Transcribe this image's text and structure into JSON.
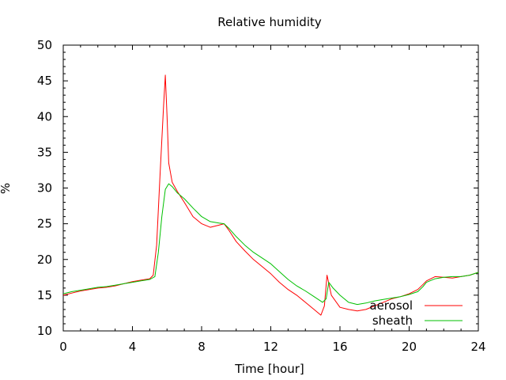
{
  "chart_data": {
    "type": "line",
    "title": "Relative humidity",
    "xlabel": "Time [hour]",
    "ylabel": "%",
    "xlim": [
      0,
      24
    ],
    "ylim": [
      10,
      50
    ],
    "x_ticks": [
      0,
      4,
      8,
      12,
      16,
      20,
      24
    ],
    "y_ticks": [
      10,
      15,
      20,
      25,
      30,
      35,
      40,
      45,
      50
    ],
    "grid": false,
    "legend_position": "bottom-right",
    "series": [
      {
        "name": "aerosol",
        "color": "#ff0000",
        "x": [
          0,
          0.5,
          1,
          1.5,
          2,
          2.5,
          3,
          3.5,
          4,
          4.5,
          5,
          5.2,
          5.4,
          5.6,
          5.8,
          5.9,
          6.0,
          6.1,
          6.3,
          6.6,
          7.0,
          7.5,
          8.0,
          8.5,
          9.0,
          9.3,
          9.6,
          10.0,
          10.5,
          11.0,
          11.5,
          12.0,
          12.5,
          13.0,
          13.5,
          14.0,
          14.5,
          14.9,
          15.1,
          15.25,
          15.5,
          16.0,
          16.5,
          17.0,
          17.5,
          18.0,
          18.5,
          19.0,
          19.5,
          20.0,
          20.5,
          20.8,
          21.0,
          21.5,
          22.0,
          22.5,
          23.0,
          23.5,
          24.0
        ],
        "y": [
          15.0,
          15.3,
          15.6,
          15.8,
          16.0,
          16.1,
          16.3,
          16.6,
          16.9,
          17.1,
          17.3,
          17.8,
          22.0,
          32.0,
          41.5,
          45.8,
          40.0,
          33.5,
          30.8,
          29.5,
          28.0,
          26.0,
          25.0,
          24.5,
          24.8,
          25.0,
          24.0,
          22.5,
          21.2,
          20.0,
          19.0,
          18.0,
          16.8,
          15.8,
          15.0,
          14.0,
          13.0,
          12.2,
          13.5,
          17.8,
          15.0,
          13.3,
          13.0,
          12.8,
          13.0,
          13.5,
          14.0,
          14.5,
          14.8,
          15.2,
          15.8,
          16.5,
          17.0,
          17.6,
          17.5,
          17.4,
          17.6,
          17.8,
          18.2
        ]
      },
      {
        "name": "sheath",
        "color": "#00c000",
        "x": [
          0,
          0.5,
          1,
          1.5,
          2,
          2.5,
          3,
          3.5,
          4,
          4.5,
          5,
          5.3,
          5.5,
          5.7,
          5.9,
          6.1,
          6.3,
          6.6,
          7.0,
          7.5,
          8.0,
          8.5,
          9.0,
          9.3,
          9.6,
          10.0,
          10.5,
          11.0,
          11.5,
          12.0,
          12.5,
          13.0,
          13.5,
          14.0,
          14.5,
          15.0,
          15.2,
          15.35,
          15.6,
          16.0,
          16.5,
          17.0,
          17.5,
          18.0,
          18.5,
          19.0,
          19.5,
          20.0,
          20.5,
          20.8,
          21.0,
          21.5,
          22.0,
          22.5,
          23.0,
          23.5,
          24.0
        ],
        "y": [
          15.2,
          15.5,
          15.7,
          15.9,
          16.1,
          16.2,
          16.4,
          16.6,
          16.8,
          17.0,
          17.2,
          17.6,
          21.0,
          26.0,
          29.8,
          30.6,
          30.2,
          29.3,
          28.5,
          27.2,
          26.0,
          25.3,
          25.1,
          25.0,
          24.3,
          23.2,
          22.0,
          21.0,
          20.2,
          19.4,
          18.3,
          17.2,
          16.3,
          15.6,
          14.8,
          14.0,
          14.5,
          16.8,
          16.0,
          15.0,
          14.0,
          13.7,
          13.9,
          14.2,
          14.4,
          14.6,
          14.8,
          15.1,
          15.5,
          16.2,
          16.8,
          17.3,
          17.5,
          17.6,
          17.6,
          17.8,
          18.2
        ]
      }
    ]
  }
}
